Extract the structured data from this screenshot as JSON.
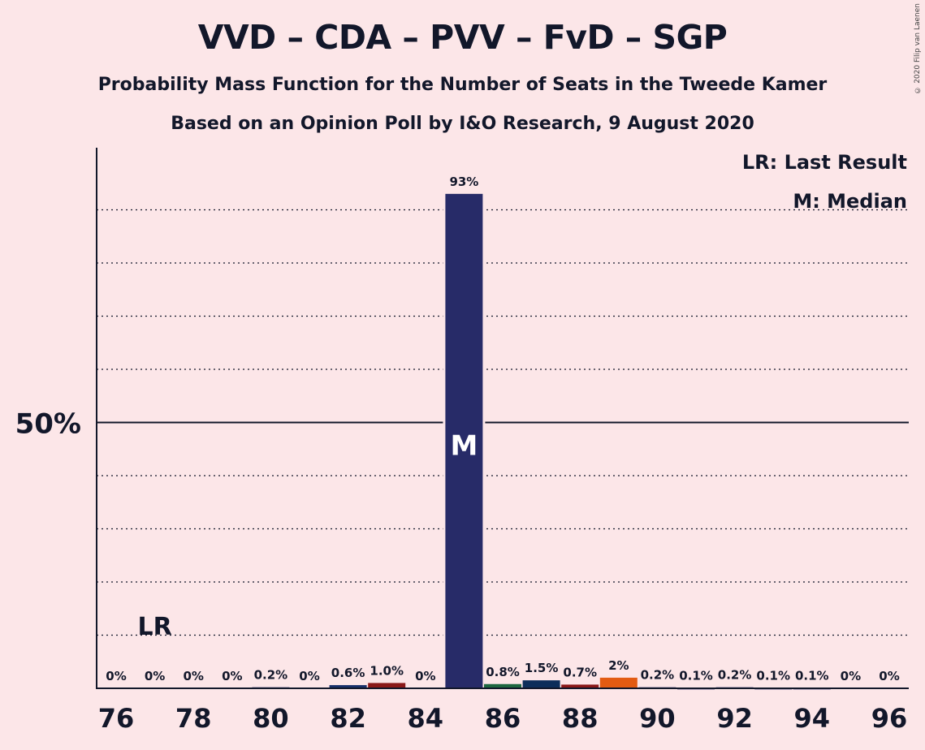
{
  "title": "VVD – CDA – PVV – FvD – SGP",
  "subtitle1": "Probability Mass Function for the Number of Seats in the Tweede Kamer",
  "subtitle2": "Based on an Opinion Poll by I&O Research, 9 August 2020",
  "copyright": "© 2020 Filip van Laenen",
  "legend": {
    "lr": "LR: Last Result",
    "median": "M: Median"
  },
  "chart_data": {
    "type": "bar",
    "categories": [
      76,
      77,
      78,
      79,
      80,
      81,
      82,
      83,
      84,
      85,
      86,
      87,
      88,
      89,
      90,
      91,
      92,
      93,
      94,
      95,
      96
    ],
    "values": [
      0,
      0,
      0,
      0,
      0.2,
      0,
      0.6,
      1.0,
      0,
      93,
      0.8,
      1.5,
      0.7,
      2,
      0.2,
      0.1,
      0.2,
      0.1,
      0.1,
      0,
      0
    ],
    "labels": [
      "0%",
      "0%",
      "0%",
      "0%",
      "0.2%",
      "0%",
      "0.6%",
      "1.0%",
      "0%",
      "93%",
      "0.8%",
      "1.5%",
      "0.7%",
      "2%",
      "0.2%",
      "0.1%",
      "0.2%",
      "0.1%",
      "0.1%",
      "0%",
      "0%"
    ],
    "colors": [
      "#2a2d6b",
      "#2a2d6b",
      "#2a2d6b",
      "#2a2d6b",
      "#2a2d6b",
      "#2a2d6b",
      "#18306a",
      "#8a1818",
      "#2a2d6b",
      "#272b68",
      "#1d6640",
      "#0c2d5a",
      "#8a1818",
      "#e35b12",
      "#2a2d6b",
      "#2a2d6b",
      "#2a2d6b",
      "#2a2d6b",
      "#2a2d6b",
      "#2a2d6b",
      "#2a2d6b"
    ],
    "x_tick_labels": [
      "76",
      "78",
      "80",
      "82",
      "84",
      "86",
      "88",
      "90",
      "92",
      "94",
      "96"
    ],
    "y_tick_label": "50%",
    "ylim": [
      0,
      100
    ],
    "grid": "dotted every 10%",
    "last_result_seat": 77,
    "last_result_label": "LR",
    "median_seat": 85,
    "median_label": "M"
  }
}
